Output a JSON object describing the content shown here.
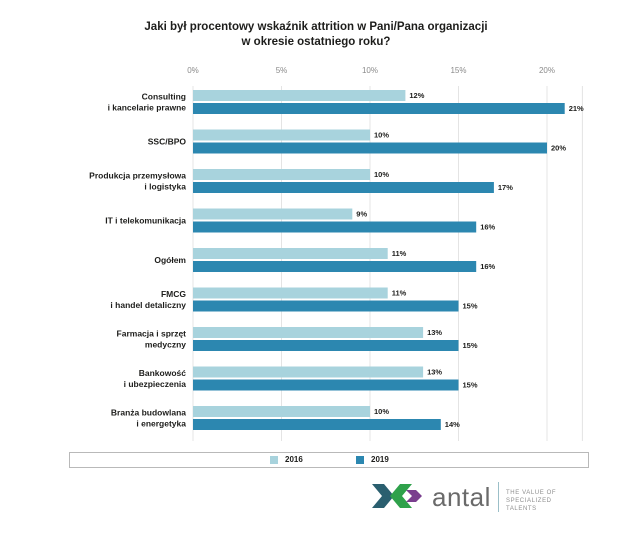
{
  "chart_data": {
    "type": "bar",
    "orientation": "horizontal",
    "title_line1": "Jaki był procentowy wskaźnik attrition w Pani/Pana organizacji",
    "title_line2": "w okresie ostatniego roku?",
    "xlim": [
      0,
      22
    ],
    "ticks": [
      "0%",
      "5%",
      "10%",
      "15%",
      "20%"
    ],
    "tick_values": [
      0,
      5,
      10,
      15,
      20
    ],
    "grid": true,
    "legend_position": "bottom",
    "categories": [
      [
        "Consulting",
        "i kancelarie prawne"
      ],
      [
        "SSC/BPO"
      ],
      [
        "Produkcja przemysłowa",
        "i logistyka"
      ],
      [
        "IT i telekomunikacja"
      ],
      [
        "Ogółem"
      ],
      [
        "FMCG",
        "i handel detaliczny"
      ],
      [
        "Farmacja i sprzęt",
        "medyczny"
      ],
      [
        "Bankowość",
        "i ubezpieczenia"
      ],
      [
        "Branża budowlana",
        "i energetyka"
      ]
    ],
    "series": [
      {
        "name": "2016",
        "color": "#a8d3dd",
        "values": [
          12,
          10,
          10,
          9,
          11,
          11,
          13,
          13,
          10
        ],
        "labels": [
          "12%",
          "10%",
          "10%",
          "9%",
          "11%",
          "11%",
          "13%",
          "13%",
          "10%"
        ]
      },
      {
        "name": "2019",
        "color": "#2c87b0",
        "values": [
          21,
          20,
          17,
          16,
          16,
          15,
          15,
          15,
          14
        ],
        "labels": [
          "21%",
          "20%",
          "17%",
          "16%",
          "16%",
          "15%",
          "15%",
          "15%",
          "14%"
        ]
      }
    ]
  },
  "logo": {
    "name": "antal",
    "tagline_line1": "THE VALUE OF",
    "tagline_line2": "SPECIALIZED TALENTS",
    "mark_color_dark": "#2a5f6f",
    "mark_color_green": "#2fa14b",
    "mark_color_purple": "#7a3e8e"
  }
}
